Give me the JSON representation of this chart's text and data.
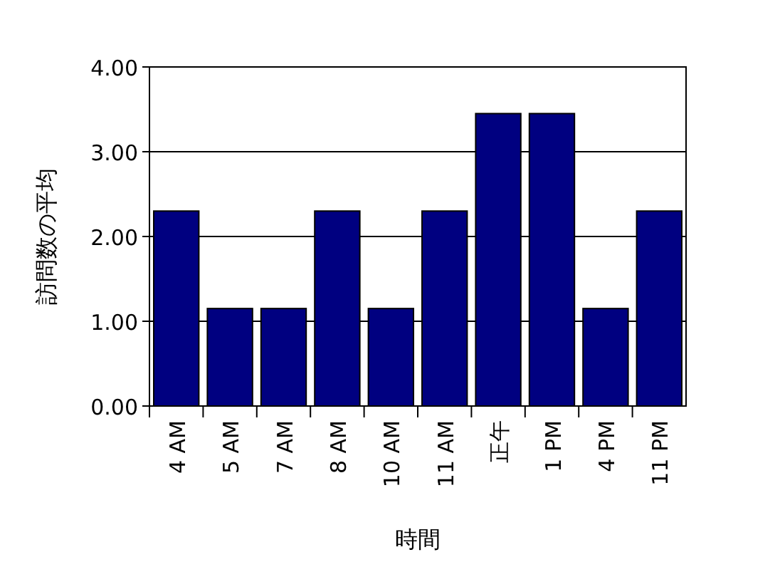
{
  "chart_data": {
    "type": "bar",
    "xlabel": "時間",
    "ylabel": "訪問数の平均",
    "categories": [
      "4 AM",
      "5 AM",
      "7 AM",
      "8 AM",
      "10 AM",
      "11 AM",
      "正午",
      "1 PM",
      "4 PM",
      "11 PM"
    ],
    "values": [
      2.3,
      1.15,
      1.15,
      2.3,
      1.15,
      2.3,
      3.45,
      3.45,
      1.15,
      2.3
    ],
    "color": "#000080",
    "ylim": [
      0,
      4
    ],
    "yticks": [
      {
        "value": 0,
        "label": "0.00"
      },
      {
        "value": 1,
        "label": "1.00"
      },
      {
        "value": 2,
        "label": "2.00"
      },
      {
        "value": 3,
        "label": "3.00"
      },
      {
        "value": 4,
        "label": "4.00"
      }
    ],
    "grid": "y"
  }
}
